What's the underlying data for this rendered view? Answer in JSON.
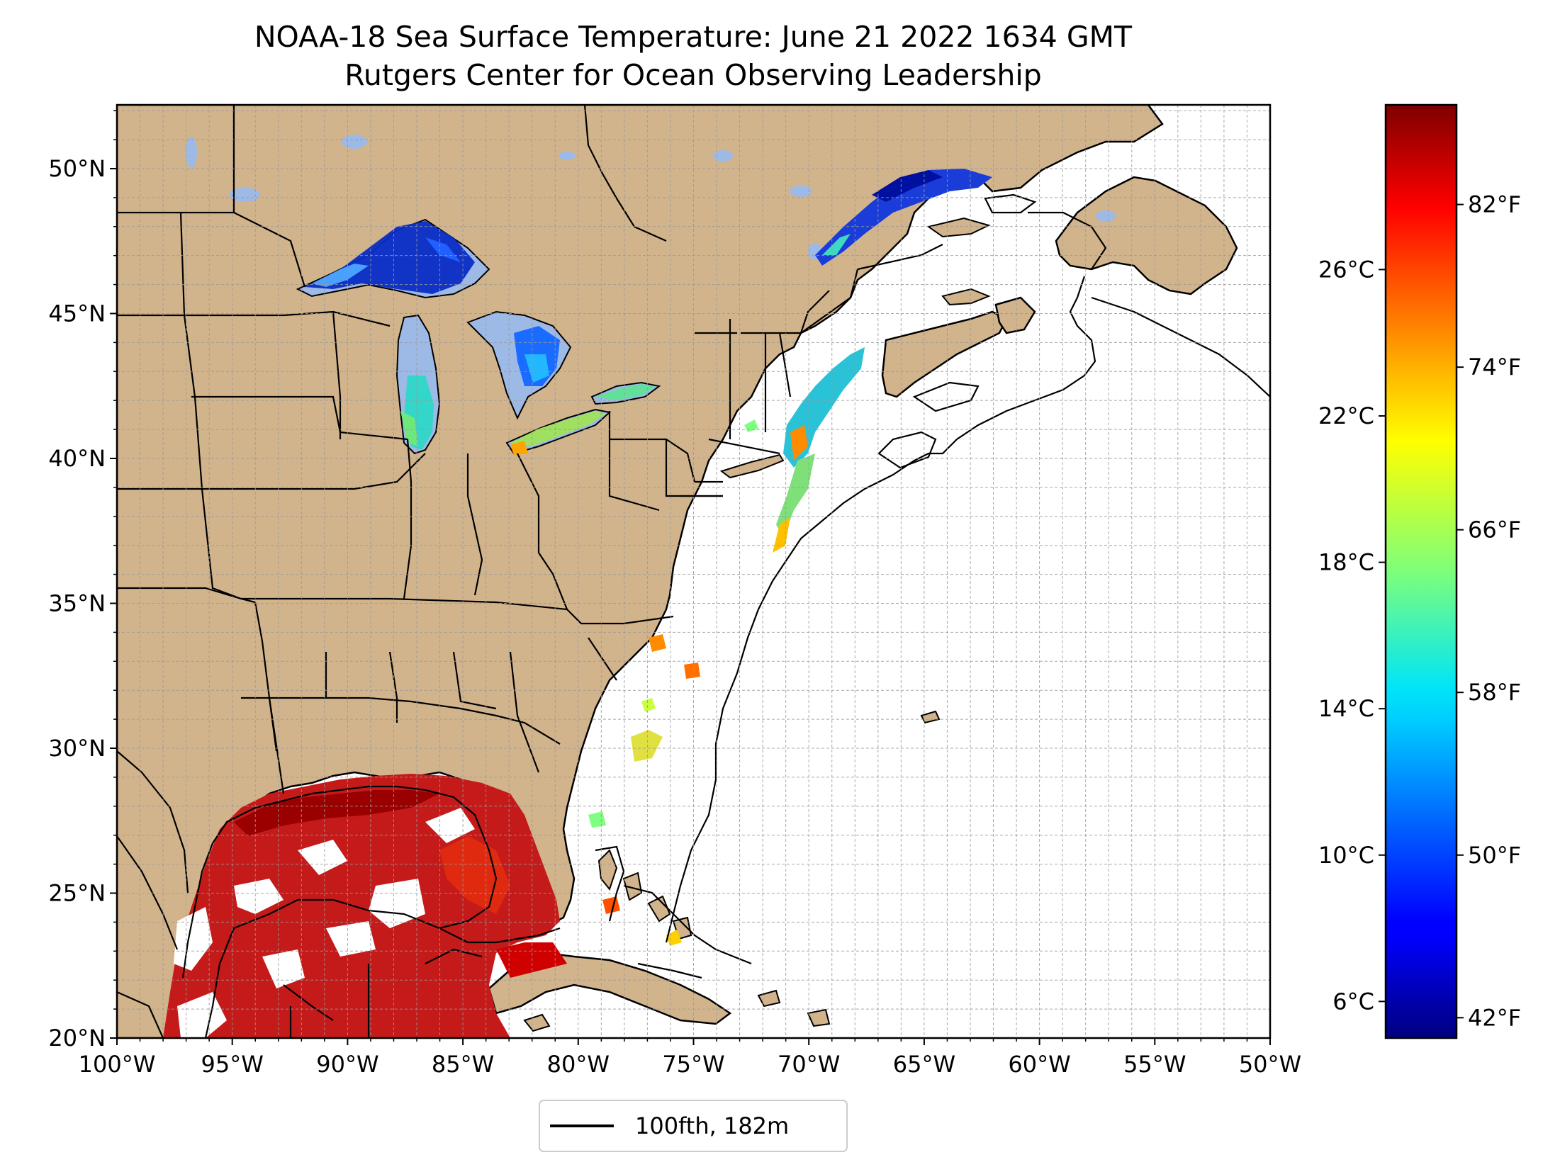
{
  "title_line1": "NOAA-18 Sea Surface Temperature: June 21 2022 1634 GMT",
  "title_line2": "Rutgers Center for Ocean Observing Leadership",
  "map": {
    "lon_range": [
      -100,
      -50
    ],
    "lat_range": [
      20,
      52.2
    ],
    "land_color": "#d2b48c",
    "lake_color": "#9db9e6",
    "ocean_color": "#ffffff",
    "grid": true,
    "lon_ticks": [
      {
        "value": -100,
        "label": "100°W"
      },
      {
        "value": -95,
        "label": "95°W"
      },
      {
        "value": -90,
        "label": "90°W"
      },
      {
        "value": -85,
        "label": "85°W"
      },
      {
        "value": -80,
        "label": "80°W"
      },
      {
        "value": -75,
        "label": "75°W"
      },
      {
        "value": -70,
        "label": "70°W"
      },
      {
        "value": -65,
        "label": "65°W"
      },
      {
        "value": -60,
        "label": "60°W"
      },
      {
        "value": -55,
        "label": "55°W"
      },
      {
        "value": -50,
        "label": "50°W"
      }
    ],
    "lat_ticks": [
      {
        "value": 20,
        "label": "20°N"
      },
      {
        "value": 25,
        "label": "25°N"
      },
      {
        "value": 30,
        "label": "30°N"
      },
      {
        "value": 35,
        "label": "35°N"
      },
      {
        "value": 40,
        "label": "40°N"
      },
      {
        "value": 45,
        "label": "45°N"
      },
      {
        "value": 50,
        "label": "50°N"
      }
    ]
  },
  "colorbar": {
    "colormap": "jet",
    "range_c": [
      5.0,
      30.5
    ],
    "celsius_ticks": [
      {
        "value": 6,
        "label": "6°C"
      },
      {
        "value": 10,
        "label": "10°C"
      },
      {
        "value": 14,
        "label": "14°C"
      },
      {
        "value": 18,
        "label": "18°C"
      },
      {
        "value": 22,
        "label": "22°C"
      },
      {
        "value": 26,
        "label": "26°C"
      }
    ],
    "fahrenheit_ticks": [
      {
        "value": 42,
        "label": "42°F"
      },
      {
        "value": 50,
        "label": "50°F"
      },
      {
        "value": 58,
        "label": "58°F"
      },
      {
        "value": 66,
        "label": "66°F"
      },
      {
        "value": 74,
        "label": "74°F"
      },
      {
        "value": 82,
        "label": "82°F"
      }
    ]
  },
  "legend": {
    "label": "100fth, 182m"
  }
}
